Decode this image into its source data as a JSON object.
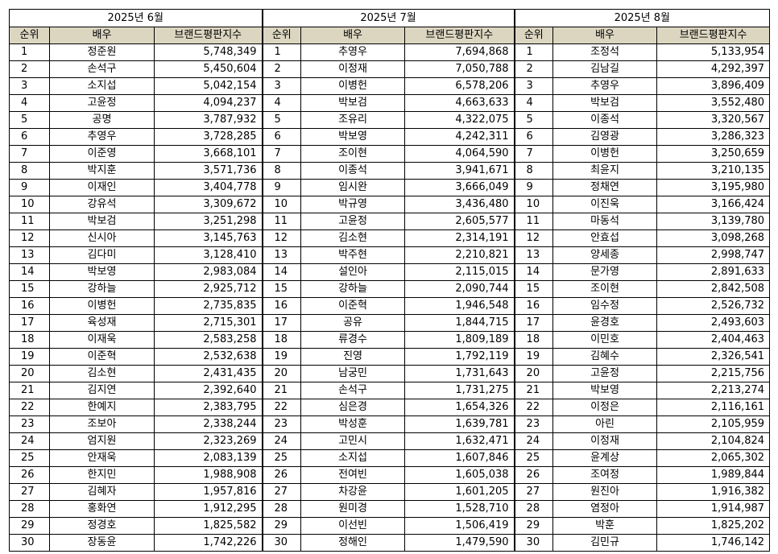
{
  "months": [
    "2025년 6월",
    "2025년 7월",
    "2025년 8월"
  ],
  "headers": {
    "rank": "순위",
    "actor": "배우",
    "index": "브랜드평판지수"
  },
  "tables": [
    {
      "rows": [
        {
          "rank": "1",
          "actor": "정준원",
          "index": "5,748,349"
        },
        {
          "rank": "2",
          "actor": "손석구",
          "index": "5,450,604"
        },
        {
          "rank": "3",
          "actor": "소지섭",
          "index": "5,042,154"
        },
        {
          "rank": "4",
          "actor": "고윤정",
          "index": "4,094,237"
        },
        {
          "rank": "5",
          "actor": "공명",
          "index": "3,787,932"
        },
        {
          "rank": "6",
          "actor": "추영우",
          "index": "3,728,285"
        },
        {
          "rank": "7",
          "actor": "이준영",
          "index": "3,668,101"
        },
        {
          "rank": "8",
          "actor": "박지훈",
          "index": "3,571,736"
        },
        {
          "rank": "9",
          "actor": "이재인",
          "index": "3,404,778"
        },
        {
          "rank": "10",
          "actor": "강유석",
          "index": "3,309,672"
        },
        {
          "rank": "11",
          "actor": "박보검",
          "index": "3,251,298"
        },
        {
          "rank": "12",
          "actor": "신시아",
          "index": "3,145,763"
        },
        {
          "rank": "13",
          "actor": "김다미",
          "index": "3,128,410"
        },
        {
          "rank": "14",
          "actor": "박보영",
          "index": "2,983,084"
        },
        {
          "rank": "15",
          "actor": "강하늘",
          "index": "2,925,712"
        },
        {
          "rank": "16",
          "actor": "이병헌",
          "index": "2,735,835"
        },
        {
          "rank": "17",
          "actor": "육성재",
          "index": "2,715,301"
        },
        {
          "rank": "18",
          "actor": "이재욱",
          "index": "2,583,258"
        },
        {
          "rank": "19",
          "actor": "이준혁",
          "index": "2,532,638"
        },
        {
          "rank": "20",
          "actor": "김소현",
          "index": "2,431,435"
        },
        {
          "rank": "21",
          "actor": "김지연",
          "index": "2,392,640"
        },
        {
          "rank": "22",
          "actor": "한예지",
          "index": "2,383,795"
        },
        {
          "rank": "23",
          "actor": "조보아",
          "index": "2,338,244"
        },
        {
          "rank": "24",
          "actor": "엄지원",
          "index": "2,323,269"
        },
        {
          "rank": "25",
          "actor": "안재욱",
          "index": "2,083,139"
        },
        {
          "rank": "26",
          "actor": "한지민",
          "index": "1,988,908"
        },
        {
          "rank": "27",
          "actor": "김혜자",
          "index": "1,957,816"
        },
        {
          "rank": "28",
          "actor": "홍화연",
          "index": "1,912,295"
        },
        {
          "rank": "29",
          "actor": "정경호",
          "index": "1,825,582"
        },
        {
          "rank": "30",
          "actor": "장동윤",
          "index": "1,742,226"
        }
      ]
    },
    {
      "rows": [
        {
          "rank": "1",
          "actor": "추영우",
          "index": "7,694,868"
        },
        {
          "rank": "2",
          "actor": "이정재",
          "index": "7,050,788"
        },
        {
          "rank": "3",
          "actor": "이병헌",
          "index": "6,578,206"
        },
        {
          "rank": "4",
          "actor": "박보검",
          "index": "4,663,633"
        },
        {
          "rank": "5",
          "actor": "조유리",
          "index": "4,322,075"
        },
        {
          "rank": "6",
          "actor": "박보영",
          "index": "4,242,311"
        },
        {
          "rank": "7",
          "actor": "조이현",
          "index": "4,064,590"
        },
        {
          "rank": "8",
          "actor": "이종석",
          "index": "3,941,671"
        },
        {
          "rank": "9",
          "actor": "임시완",
          "index": "3,666,049"
        },
        {
          "rank": "10",
          "actor": "박규영",
          "index": "3,436,480"
        },
        {
          "rank": "11",
          "actor": "고윤정",
          "index": "2,605,577"
        },
        {
          "rank": "12",
          "actor": "김소현",
          "index": "2,314,191"
        },
        {
          "rank": "13",
          "actor": "박주현",
          "index": "2,210,821"
        },
        {
          "rank": "14",
          "actor": "설인아",
          "index": "2,115,015"
        },
        {
          "rank": "15",
          "actor": "강하늘",
          "index": "2,090,744"
        },
        {
          "rank": "16",
          "actor": "이준혁",
          "index": "1,946,548"
        },
        {
          "rank": "17",
          "actor": "공유",
          "index": "1,844,715"
        },
        {
          "rank": "18",
          "actor": "류경수",
          "index": "1,809,189"
        },
        {
          "rank": "19",
          "actor": "진영",
          "index": "1,792,119"
        },
        {
          "rank": "20",
          "actor": "남궁민",
          "index": "1,731,643"
        },
        {
          "rank": "21",
          "actor": "손석구",
          "index": "1,731,275"
        },
        {
          "rank": "22",
          "actor": "심은경",
          "index": "1,654,326"
        },
        {
          "rank": "23",
          "actor": "박성훈",
          "index": "1,639,781"
        },
        {
          "rank": "24",
          "actor": "고민시",
          "index": "1,632,471"
        },
        {
          "rank": "25",
          "actor": "소지섭",
          "index": "1,607,846"
        },
        {
          "rank": "26",
          "actor": "전여빈",
          "index": "1,605,038"
        },
        {
          "rank": "27",
          "actor": "차강윤",
          "index": "1,601,205"
        },
        {
          "rank": "28",
          "actor": "원미경",
          "index": "1,528,710"
        },
        {
          "rank": "29",
          "actor": "이선빈",
          "index": "1,506,419"
        },
        {
          "rank": "30",
          "actor": "정해인",
          "index": "1,479,590"
        }
      ]
    },
    {
      "rows": [
        {
          "rank": "1",
          "actor": "조정석",
          "index": "5,133,954"
        },
        {
          "rank": "2",
          "actor": "김남길",
          "index": "4,292,397"
        },
        {
          "rank": "3",
          "actor": "추영우",
          "index": "3,896,409"
        },
        {
          "rank": "4",
          "actor": "박보검",
          "index": "3,552,480"
        },
        {
          "rank": "5",
          "actor": "이종석",
          "index": "3,320,567"
        },
        {
          "rank": "6",
          "actor": "김영광",
          "index": "3,286,323"
        },
        {
          "rank": "7",
          "actor": "이병헌",
          "index": "3,250,659"
        },
        {
          "rank": "8",
          "actor": "최윤지",
          "index": "3,210,135"
        },
        {
          "rank": "9",
          "actor": "정채연",
          "index": "3,195,980"
        },
        {
          "rank": "10",
          "actor": "이진욱",
          "index": "3,166,424"
        },
        {
          "rank": "11",
          "actor": "마동석",
          "index": "3,139,780"
        },
        {
          "rank": "12",
          "actor": "안효섭",
          "index": "3,098,268"
        },
        {
          "rank": "13",
          "actor": "양세종",
          "index": "2,998,747"
        },
        {
          "rank": "14",
          "actor": "문가영",
          "index": "2,891,633"
        },
        {
          "rank": "15",
          "actor": "조이현",
          "index": "2,842,508"
        },
        {
          "rank": "16",
          "actor": "임수정",
          "index": "2,526,732"
        },
        {
          "rank": "17",
          "actor": "윤경호",
          "index": "2,493,603"
        },
        {
          "rank": "18",
          "actor": "이민호",
          "index": "2,404,463"
        },
        {
          "rank": "19",
          "actor": "김혜수",
          "index": "2,326,541"
        },
        {
          "rank": "20",
          "actor": "고윤정",
          "index": "2,215,756"
        },
        {
          "rank": "21",
          "actor": "박보영",
          "index": "2,213,274"
        },
        {
          "rank": "22",
          "actor": "이정은",
          "index": "2,116,161"
        },
        {
          "rank": "23",
          "actor": "아린",
          "index": "2,105,959"
        },
        {
          "rank": "24",
          "actor": "이정재",
          "index": "2,104,824"
        },
        {
          "rank": "25",
          "actor": "윤계상",
          "index": "2,065,302"
        },
        {
          "rank": "26",
          "actor": "조여정",
          "index": "1,989,844"
        },
        {
          "rank": "27",
          "actor": "원진아",
          "index": "1,916,382"
        },
        {
          "rank": "28",
          "actor": "염정아",
          "index": "1,914,987"
        },
        {
          "rank": "29",
          "actor": "박훈",
          "index": "1,825,202"
        },
        {
          "rank": "30",
          "actor": "김민규",
          "index": "1,746,142"
        }
      ]
    }
  ]
}
